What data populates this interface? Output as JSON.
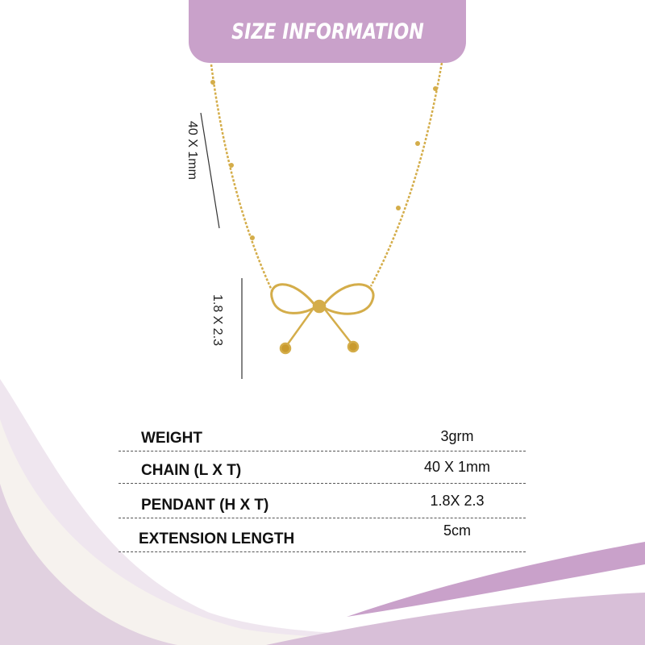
{
  "banner": {
    "title": "SIZE INFORMATION"
  },
  "dimensions": {
    "chain": "40  X  1mm",
    "pendant": "1.8 X 2.3"
  },
  "specs": [
    {
      "label": "WEIGHT",
      "value": "3grm"
    },
    {
      "label": "CHAIN (L X T)",
      "value": "40 X  1mm"
    },
    {
      "label": "PENDANT (H X T)",
      "value": "1.8X 2.3"
    },
    {
      "label": "EXTENSION LENGTH",
      "value": "5cm"
    }
  ],
  "colors": {
    "accent": "#c9a1ca",
    "gold": "#d4ad4a",
    "wave_light": "#e9dbe9"
  }
}
